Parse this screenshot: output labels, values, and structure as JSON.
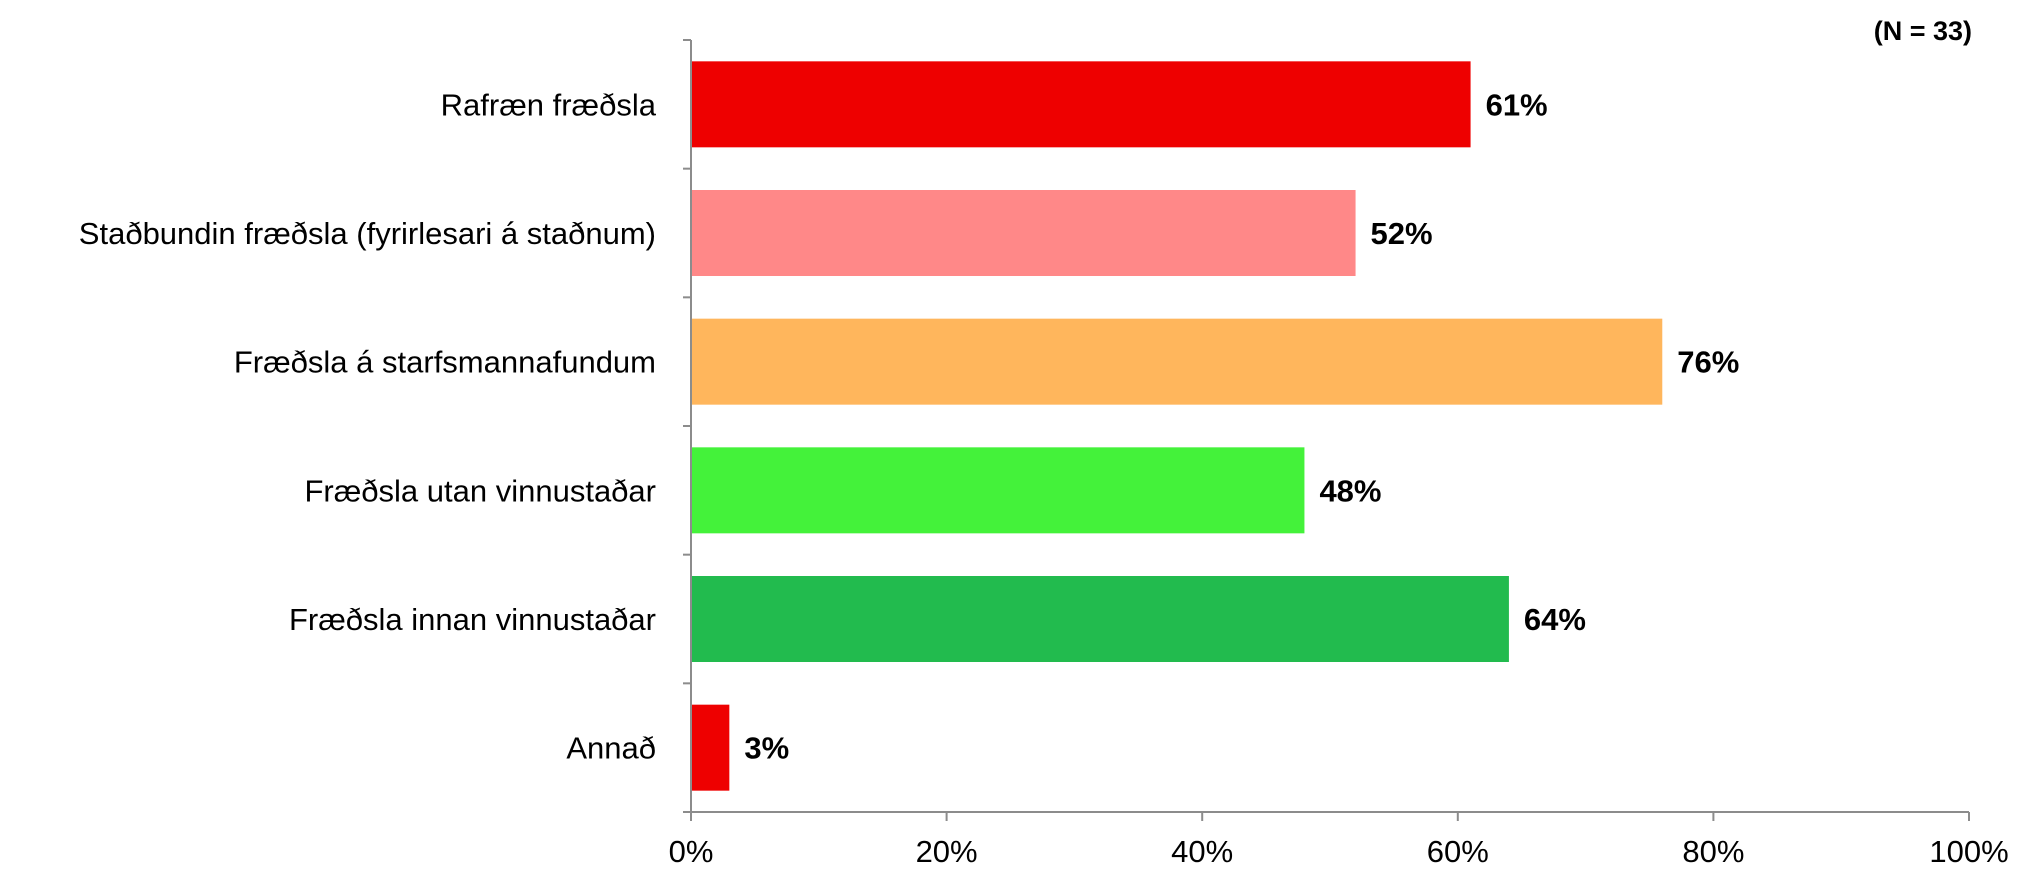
{
  "chart_data": {
    "type": "bar",
    "orientation": "horizontal",
    "categories": [
      "Rafræn fræðsla",
      "Staðbundin fræðsla (fyrirlesari á staðnum)",
      "Fræðsla á starfsmannafundum",
      "Fræðsla utan vinnustaðar",
      "Fræðsla innan vinnustaðar",
      "Annað"
    ],
    "values": [
      61,
      52,
      76,
      48,
      64,
      3
    ],
    "value_labels": [
      "61%",
      "52%",
      "76%",
      "48%",
      "64%",
      "3%"
    ],
    "colors": [
      "#ee0000",
      "#ff8888",
      "#ffb65c",
      "#44f23a",
      "#22bb4e",
      "#ee0000"
    ],
    "xlim": [
      0,
      100
    ],
    "x_ticks": [
      0,
      20,
      40,
      60,
      80,
      100
    ],
    "x_tick_labels": [
      "0%",
      "20%",
      "40%",
      "60%",
      "80%",
      "100%"
    ],
    "annotation": "(N = 33)",
    "grid": false,
    "legend": "none",
    "title": "",
    "xlabel": "",
    "ylabel": ""
  }
}
